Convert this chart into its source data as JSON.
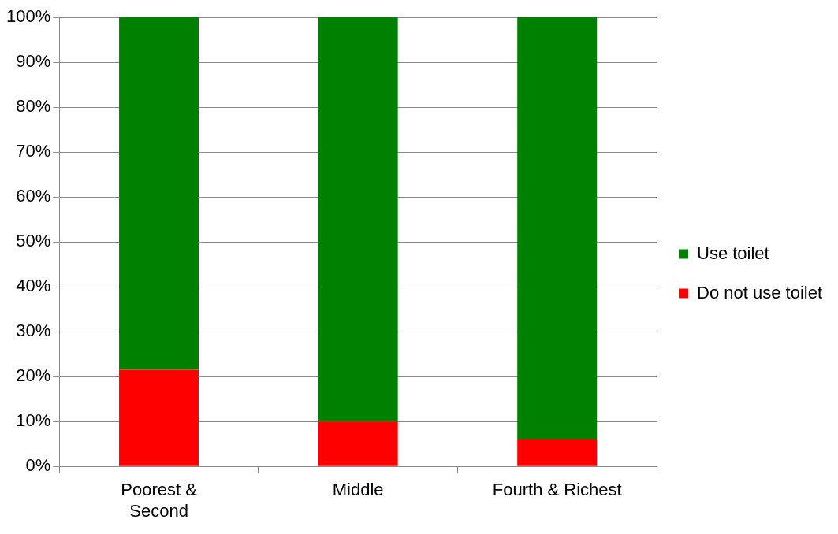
{
  "chart_data": {
    "type": "bar",
    "stacked": true,
    "categories": [
      "Poorest &\nSecond",
      "Middle",
      "Fourth & Richest"
    ],
    "series": [
      {
        "name": "Do not use toilet",
        "color": "#ff0000",
        "values": [
          21.5,
          10,
          6
        ]
      },
      {
        "name": "Use toilet",
        "color": "#008000",
        "values": [
          78.5,
          90,
          94
        ]
      }
    ],
    "ylim": [
      0,
      100
    ],
    "yticks": [
      {
        "value": 0,
        "label": "0%"
      },
      {
        "value": 10,
        "label": "10%"
      },
      {
        "value": 20,
        "label": "20%"
      },
      {
        "value": 30,
        "label": "30%"
      },
      {
        "value": 40,
        "label": "40%"
      },
      {
        "value": 50,
        "label": "50%"
      },
      {
        "value": 60,
        "label": "60%"
      },
      {
        "value": 70,
        "label": "70%"
      },
      {
        "value": 80,
        "label": "80%"
      },
      {
        "value": 90,
        "label": "90%"
      },
      {
        "value": 100,
        "label": "100%"
      }
    ],
    "grid": "y",
    "legend": "right"
  }
}
